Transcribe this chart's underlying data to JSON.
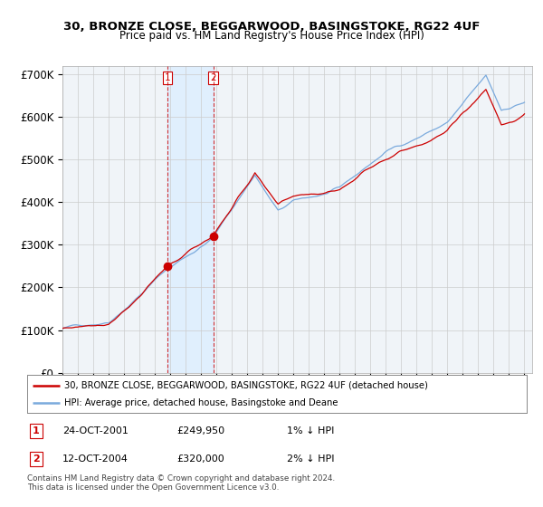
{
  "title_line1": "30, BRONZE CLOSE, BEGGARWOOD, BASINGSTOKE, RG22 4UF",
  "title_line2": "Price paid vs. HM Land Registry's House Price Index (HPI)",
  "ylim": [
    0,
    720000
  ],
  "yticks": [
    0,
    100000,
    200000,
    300000,
    400000,
    500000,
    600000,
    700000
  ],
  "ytick_labels": [
    "£0",
    "£100K",
    "£200K",
    "£300K",
    "£400K",
    "£500K",
    "£600K",
    "£700K"
  ],
  "hpi_color": "#7aaadd",
  "price_color": "#cc0000",
  "marker_color": "#cc0000",
  "vline_color": "#cc0000",
  "shade_color": "#ddeeff",
  "grid_color": "#cccccc",
  "background_color": "#ffffff",
  "legend_label_red": "30, BRONZE CLOSE, BEGGARWOOD, BASINGSTOKE, RG22 4UF (detached house)",
  "legend_label_blue": "HPI: Average price, detached house, Basingstoke and Deane",
  "transaction1_date": "24-OCT-2001",
  "transaction1_price": "£249,950",
  "transaction1_rel": "1% ↓ HPI",
  "transaction2_date": "12-OCT-2004",
  "transaction2_price": "£320,000",
  "transaction2_rel": "2% ↓ HPI",
  "footnote": "Contains HM Land Registry data © Crown copyright and database right 2024.\nThis data is licensed under the Open Government Licence v3.0.",
  "transaction1_x": 2001.82,
  "transaction2_x": 2004.79,
  "transaction1_y": 249950,
  "transaction2_y": 320000,
  "xlim_start": 1995.5,
  "xlim_end": 2025.5
}
